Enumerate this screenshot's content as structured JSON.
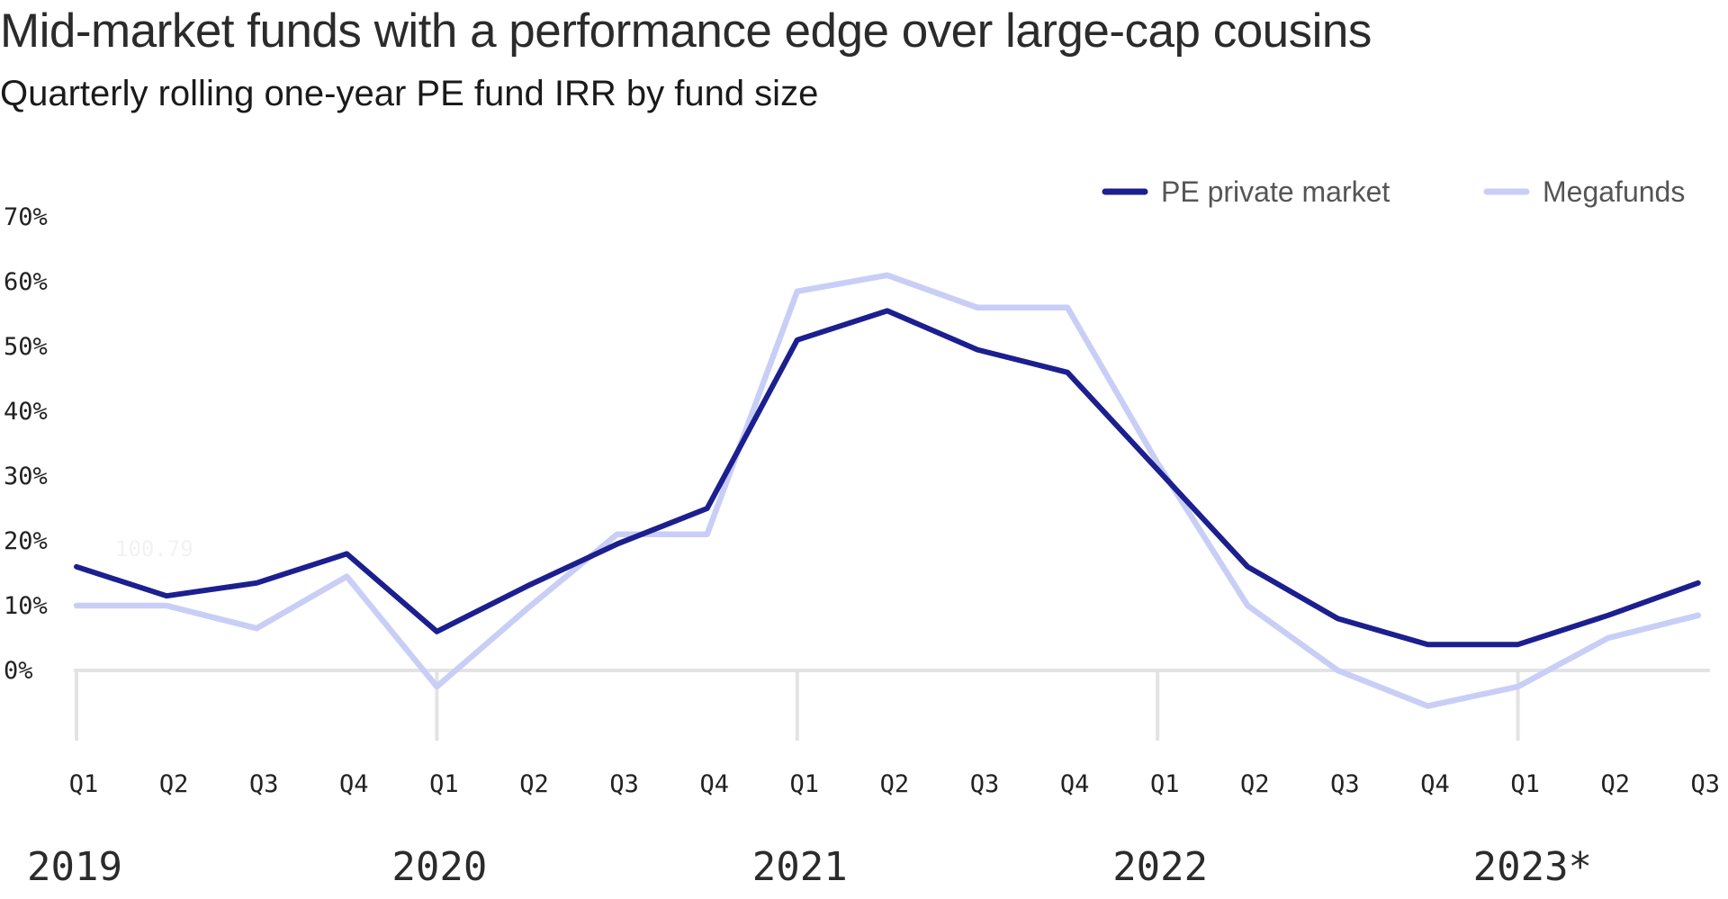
{
  "header": {
    "title": "Mid-market funds with a performance edge over large-cap cousins",
    "subtitle": "Quarterly rolling one-year PE fund IRR by fund size"
  },
  "colors": {
    "pe_private_market": "#1b1f8f",
    "megafunds": "#c9cef7",
    "grid": "#e3e3e3"
  },
  "chart_data": {
    "type": "line",
    "title": "Mid-market funds with a performance edge over large-cap cousins",
    "subtitle": "Quarterly rolling one-year PE fund IRR by fund size",
    "categories": [
      "Q1",
      "Q2",
      "Q3",
      "Q4",
      "Q1",
      "Q2",
      "Q3",
      "Q4",
      "Q1",
      "Q2",
      "Q3",
      "Q4",
      "Q1",
      "Q2",
      "Q3",
      "Q4",
      "Q1",
      "Q2",
      "Q3"
    ],
    "years": [
      "2019",
      "2020",
      "2021",
      "2022",
      "2023*"
    ],
    "year_start_index": [
      0,
      4,
      8,
      12,
      16
    ],
    "y_ticks": [
      "70%",
      "60%",
      "50%",
      "40%",
      "30%",
      "20%",
      "10%",
      "0%"
    ],
    "ylim": [
      -12,
      70
    ],
    "xlabel": "",
    "ylabel": "",
    "grid": "zero line and year separators",
    "legend_position": "top-right",
    "series": [
      {
        "name": "PE private market",
        "color": "#1b1f8f",
        "values": [
          16,
          11.5,
          13.5,
          18,
          6,
          13,
          19.5,
          25,
          51,
          55.5,
          49.5,
          46,
          31,
          16,
          8,
          4,
          4,
          8.5,
          13.5
        ]
      },
      {
        "name": "Megafunds",
        "color": "#c9cef7",
        "values": [
          10,
          10,
          6.5,
          14.5,
          -2.5,
          9.5,
          21,
          21,
          58.5,
          61,
          56,
          56,
          32,
          10,
          0,
          -5.5,
          -2.5,
          5,
          8.5
        ]
      }
    ],
    "annotation": "100.79"
  }
}
